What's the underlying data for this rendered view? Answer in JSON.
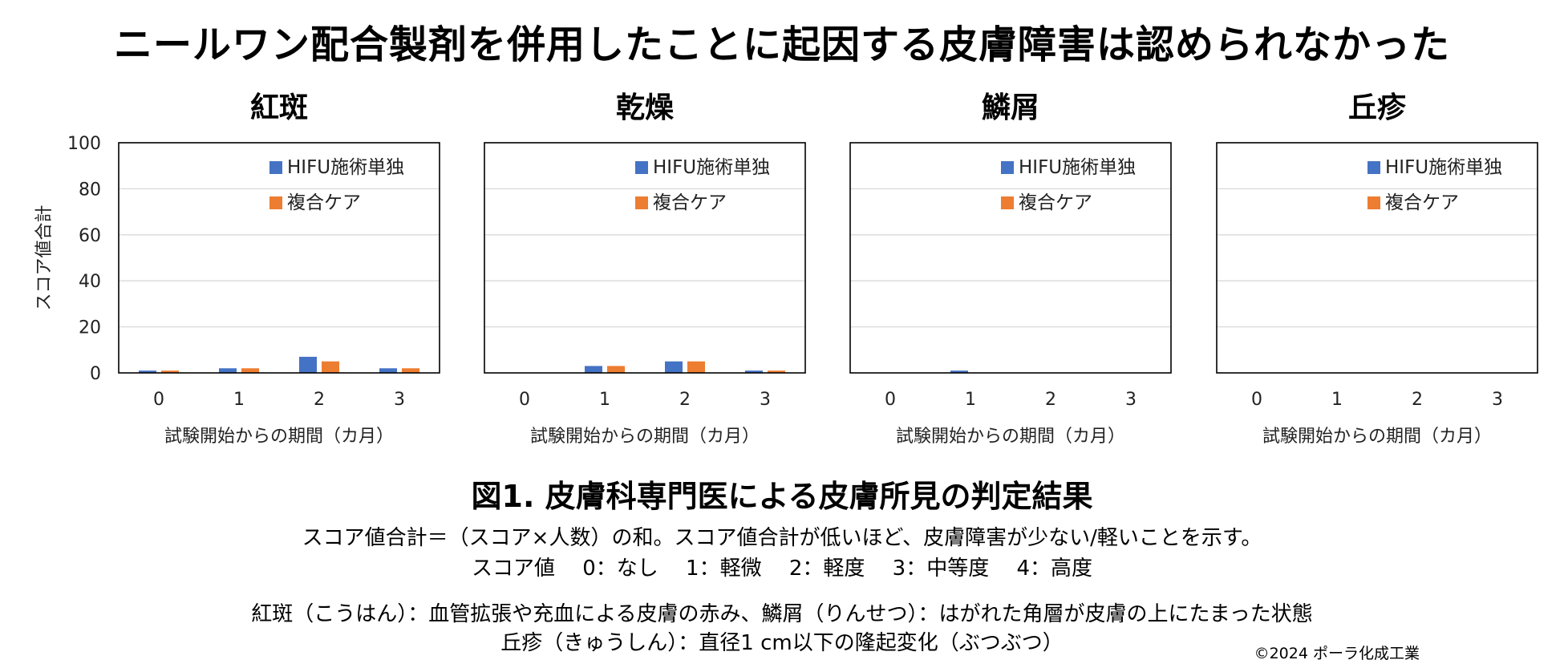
{
  "title": "ニールワン配合製剤を併用したことに起因する皮膚障害は認められなかった",
  "figure_title": "図1. 皮膚科専門医による皮膚所見の判定結果",
  "notes": {
    "line1": "スコア値合計＝（スコア×人数）の和。スコア値合計が低いほど、皮膚障害が少ない/軽いことを示す。",
    "line2": "スコア値　 0：なし　 1：軽微　 2：軽度　 3：中等度　 4：高度",
    "line3": "紅斑（こうはん）：血管拡張や充血による皮膚の赤み、鱗屑（りんせつ）：はがれた角層が皮膚の上にたまった状態",
    "line4": "丘疹（きゅうしん）：直径1 cm以下の隆起変化（ぶつぶつ）"
  },
  "copyright": "©2024 ポーラ化成工業",
  "colors": {
    "series1": "#4472C4",
    "series2": "#ED7D31",
    "grid": "#d9d9d9"
  },
  "chart_data": [
    {
      "type": "bar",
      "title": "紅斑",
      "categories": [
        "0",
        "1",
        "2",
        "3"
      ],
      "series": [
        {
          "name": "HIFU施術単独",
          "values": [
            1,
            2,
            7,
            2
          ]
        },
        {
          "name": "複合ケア",
          "values": [
            1,
            2,
            5,
            2
          ]
        }
      ],
      "xlabel": "試験開始からの期間（カ月）",
      "ylabel": "スコア値合計",
      "yticks": [
        "0",
        "20",
        "40",
        "60",
        "80",
        "100"
      ],
      "ylim": [
        0,
        100
      ],
      "grid": true,
      "legend": "top-right"
    },
    {
      "type": "bar",
      "title": "乾燥",
      "categories": [
        "0",
        "1",
        "2",
        "3"
      ],
      "series": [
        {
          "name": "HIFU施術単独",
          "values": [
            0,
            3,
            5,
            1
          ]
        },
        {
          "name": "複合ケア",
          "values": [
            0,
            3,
            5,
            1
          ]
        }
      ],
      "xlabel": "試験開始からの期間（カ月）",
      "ylim": [
        0,
        100
      ],
      "grid": true,
      "legend": "top-right"
    },
    {
      "type": "bar",
      "title": "鱗屑",
      "categories": [
        "0",
        "1",
        "2",
        "3"
      ],
      "series": [
        {
          "name": "HIFU施術単独",
          "values": [
            0,
            1,
            0,
            0
          ]
        },
        {
          "name": "複合ケア",
          "values": [
            0,
            0,
            0,
            0
          ]
        }
      ],
      "xlabel": "試験開始からの期間（カ月）",
      "ylim": [
        0,
        100
      ],
      "grid": true,
      "legend": "top-right"
    },
    {
      "type": "bar",
      "title": "丘疹",
      "categories": [
        "0",
        "1",
        "2",
        "3"
      ],
      "series": [
        {
          "name": "HIFU施術単独",
          "values": [
            0,
            0,
            0,
            0
          ]
        },
        {
          "name": "複合ケア",
          "values": [
            0,
            0,
            0,
            0
          ]
        }
      ],
      "xlabel": "試験開始からの期間（カ月）",
      "ylim": [
        0,
        100
      ],
      "grid": true,
      "legend": "top-right"
    }
  ]
}
